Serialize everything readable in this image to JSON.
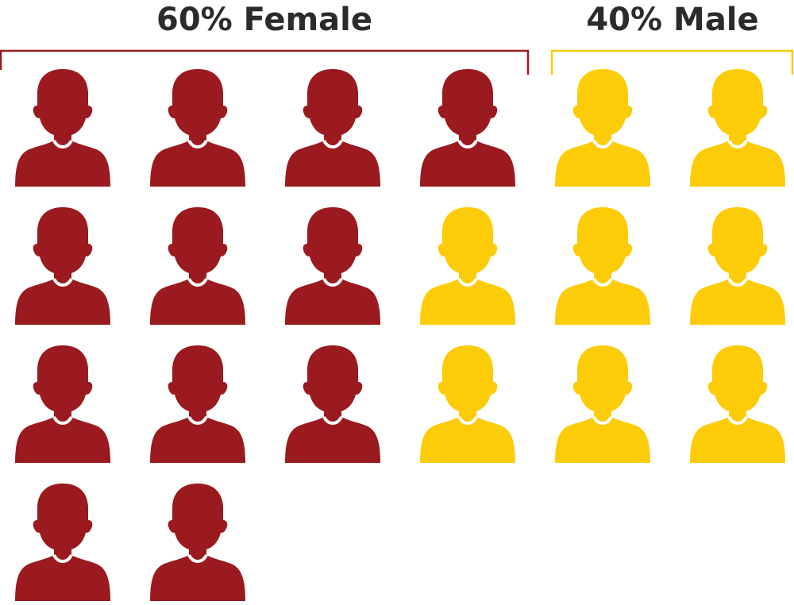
{
  "chart_data": {
    "type": "pictograph",
    "categories": [
      "Female",
      "Male"
    ],
    "values": [
      60,
      40
    ],
    "unit": "%",
    "icon_counts": [
      12,
      8
    ],
    "icon": "person-icon",
    "labels": [
      "60% Female",
      "40% Male"
    ],
    "colors": {
      "Female": "#9a1a20",
      "Male": "#fdcc09"
    }
  }
}
